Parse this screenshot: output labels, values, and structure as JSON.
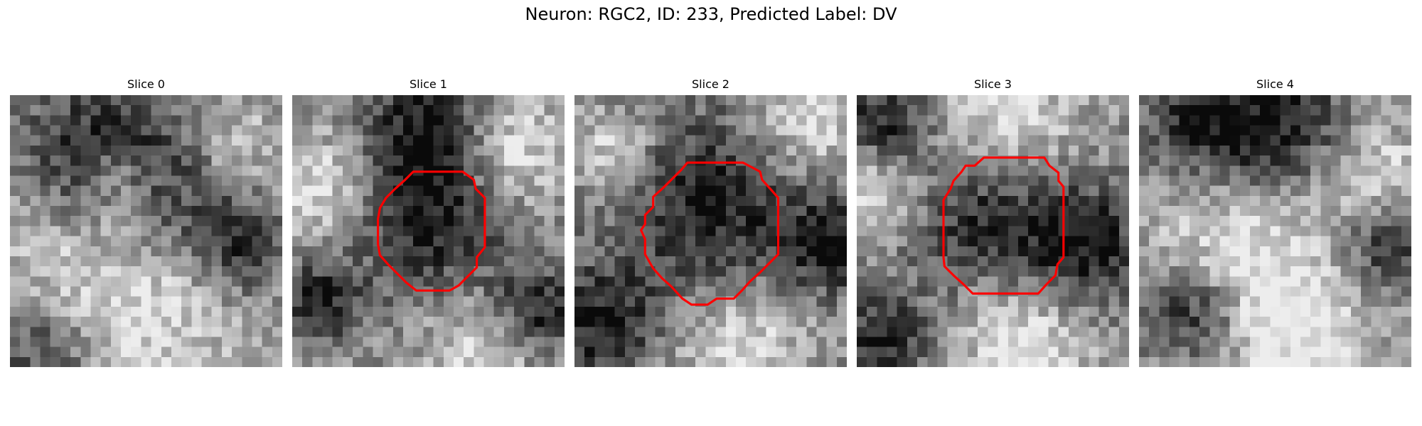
{
  "figure": {
    "title": "Neuron: RGC2, ID: 233, Predicted Label: DV"
  },
  "panels": [
    {
      "title": "Slice 0",
      "has_contour": false,
      "contour_color": "#ff0000",
      "seed": 11,
      "dark_blobs": [
        [
          0.28,
          0.22,
          0.18
        ],
        [
          0.62,
          0.3,
          0.2
        ],
        [
          0.85,
          0.55,
          0.12
        ],
        [
          0.12,
          0.95,
          0.15
        ]
      ],
      "bright_blobs": [
        [
          0.35,
          0.75,
          0.35
        ],
        [
          0.4,
          0.3,
          0.1
        ],
        [
          0.8,
          0.2,
          0.15
        ]
      ]
    },
    {
      "title": "Slice 1",
      "has_contour": true,
      "contour_color": "#ff0000",
      "seed": 23,
      "dark_blobs": [
        [
          0.5,
          0.45,
          0.2
        ],
        [
          0.5,
          0.1,
          0.15
        ],
        [
          0.1,
          0.75,
          0.1
        ],
        [
          0.9,
          0.8,
          0.12
        ]
      ],
      "bright_blobs": [
        [
          0.1,
          0.35,
          0.15
        ],
        [
          0.8,
          0.2,
          0.15
        ],
        [
          0.7,
          0.95,
          0.15
        ]
      ]
    },
    {
      "title": "Slice 2",
      "has_contour": true,
      "contour_color": "#ff0000",
      "seed": 37,
      "dark_blobs": [
        [
          0.52,
          0.42,
          0.25
        ],
        [
          0.1,
          0.85,
          0.15
        ],
        [
          0.95,
          0.55,
          0.12
        ]
      ],
      "bright_blobs": [
        [
          0.6,
          0.9,
          0.18
        ],
        [
          0.85,
          0.1,
          0.15
        ],
        [
          0.15,
          0.2,
          0.1
        ]
      ]
    },
    {
      "title": "Slice 3",
      "has_contour": true,
      "contour_color": "#ff0000",
      "seed": 41,
      "dark_blobs": [
        [
          0.5,
          0.45,
          0.2
        ],
        [
          0.1,
          0.1,
          0.12
        ],
        [
          0.85,
          0.55,
          0.15
        ],
        [
          0.1,
          0.9,
          0.12
        ]
      ],
      "bright_blobs": [
        [
          0.55,
          0.1,
          0.2
        ],
        [
          0.05,
          0.35,
          0.12
        ],
        [
          0.6,
          0.9,
          0.18
        ]
      ]
    },
    {
      "title": "Slice 4",
      "has_contour": false,
      "contour_color": "#ff0000",
      "seed": 59,
      "dark_blobs": [
        [
          0.25,
          0.1,
          0.15
        ],
        [
          0.55,
          0.15,
          0.18
        ],
        [
          0.2,
          0.8,
          0.12
        ],
        [
          0.9,
          0.55,
          0.12
        ]
      ],
      "bright_blobs": [
        [
          0.4,
          0.55,
          0.25
        ],
        [
          0.85,
          0.3,
          0.15
        ],
        [
          0.6,
          0.9,
          0.18
        ]
      ]
    }
  ]
}
